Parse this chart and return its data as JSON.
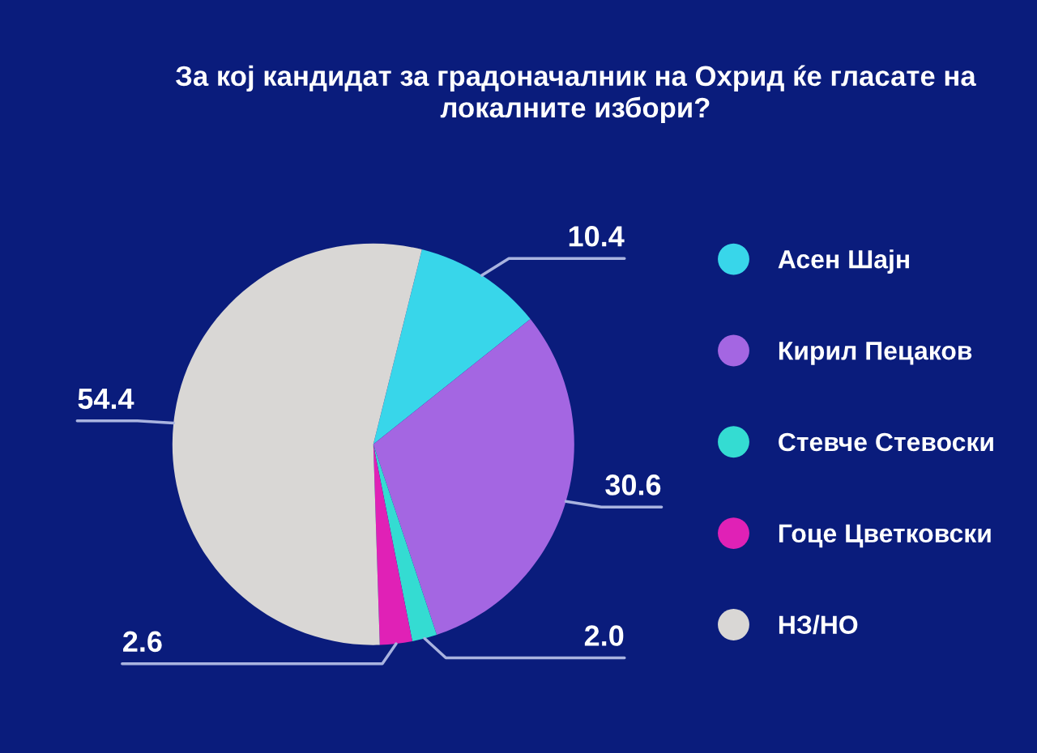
{
  "chart_data": {
    "type": "pie",
    "title": "За кој кандидат за градоначалник на Охрид ќе гласате на локалните избори?",
    "categories": [
      "Асен Шајн",
      "Кирил Пецаков",
      "Стевче Стевоски",
      "Гоце Цветковски",
      "НЗ/НО"
    ],
    "values": [
      10.4,
      30.6,
      2.0,
      2.6,
      54.4
    ],
    "value_labels": [
      "10.4",
      "30.6",
      "2.0",
      "2.6",
      "54.4"
    ],
    "colors": [
      "#38d6ea",
      "#a466e2",
      "#34dcd2",
      "#e021b6",
      "#d9d7d5"
    ],
    "legend": "right"
  }
}
